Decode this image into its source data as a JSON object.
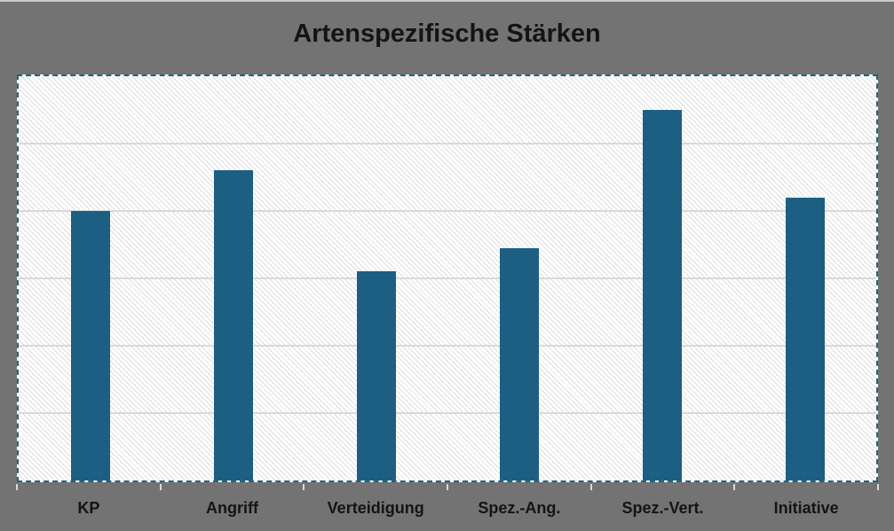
{
  "chart_data": {
    "type": "bar",
    "title": "Artenspezifische Stärken",
    "categories": [
      "KP",
      "Angriff",
      "Verteidigung",
      "Spez.-Ang.",
      "Spez.-Vert.",
      "Initiative"
    ],
    "values": [
      80,
      92,
      62,
      69,
      110,
      84
    ],
    "xlabel": "",
    "ylabel": "",
    "ylim": [
      0,
      120
    ],
    "gridline_step": 20,
    "layout_hints": {
      "grid": true,
      "legend": false,
      "y_axis_tick_labels_visible": false,
      "plot_area_fill": "diagonal-hatch",
      "plot_area_selection_outline": "dashed"
    }
  },
  "colors": {
    "background": "#737373",
    "top_edge": "#c7cacd",
    "bar": "#1c5f82",
    "selection_dash": "#1e6484",
    "gridline": "#d9d9d9",
    "tick": "#d9d9d9",
    "title_text": "#141414",
    "plot_fill": "#ffffff"
  }
}
